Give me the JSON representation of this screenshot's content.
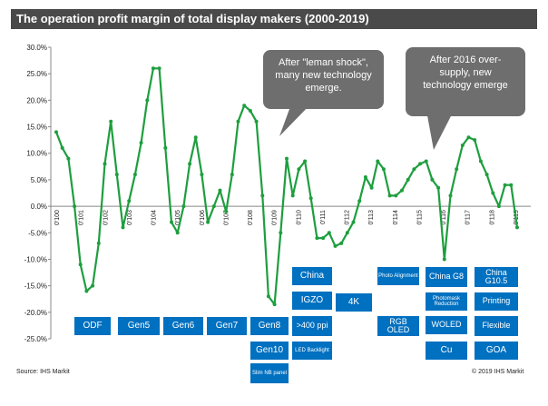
{
  "chart_data": {
    "type": "line",
    "title": "The operation profit margin of total display makers (2000-2019)",
    "y_tick_labels": [
      "30.0%",
      "25.0%",
      "20.0%",
      "15.0%",
      "10.0%",
      "5.0%",
      "0.0%",
      "-5.0%",
      "-10.0%",
      "-15.0%",
      "-20.0%",
      "-25.0%"
    ],
    "ylim": [
      -25,
      30
    ],
    "x_tick_labels": [
      "0'100",
      "0'101",
      "0'102",
      "0'103",
      "0'104",
      "0'105",
      "0'106",
      "0'107",
      "0'108",
      "0'109",
      "0'110",
      "0'111",
      "0'112",
      "0'113",
      "0'114",
      "0'115",
      "0'116",
      "0'117",
      "0'118",
      "0'119"
    ],
    "series": [
      {
        "name": "Operation profit margin",
        "color": "#1e9e3e",
        "values": [
          14,
          11,
          9,
          0,
          -11,
          -16,
          -15,
          -7,
          8,
          16,
          6,
          -4,
          1,
          6,
          12,
          20,
          26,
          26,
          11,
          -3,
          -5,
          0,
          8,
          13,
          6,
          -3,
          0,
          3,
          -1,
          6,
          16,
          19,
          18,
          16,
          2,
          -17,
          -18.5,
          -5,
          9,
          2,
          7,
          8.5,
          1.5,
          -6,
          -6,
          -5,
          -7.5,
          -7,
          -5,
          -3,
          1,
          5.5,
          3.5,
          8.5,
          7,
          2,
          2,
          3,
          5,
          7,
          8,
          8.5,
          5,
          3.5,
          -10,
          2,
          7,
          11.5,
          13,
          12.5,
          8.5,
          6,
          2.5,
          0,
          4,
          4,
          -4
        ]
      }
    ],
    "annotations": [
      {
        "text": "After \"leman shock\", many new technology emerge."
      },
      {
        "text": "After 2016 over-supply, new technology emerge"
      }
    ],
    "technology_labels": [
      {
        "id": "odf",
        "text": "ODF"
      },
      {
        "id": "gen5",
        "text": "Gen5"
      },
      {
        "id": "gen6",
        "text": "Gen6"
      },
      {
        "id": "gen7",
        "text": "Gen7"
      },
      {
        "id": "gen8",
        "text": "Gen8"
      },
      {
        "id": "gen10",
        "text": "Gen10"
      },
      {
        "id": "slimnb",
        "text": "Slim NB panel"
      },
      {
        "id": "china",
        "text": "China"
      },
      {
        "id": "igzo",
        "text": "IGZO"
      },
      {
        "id": "ppi400",
        "text": ">400 ppi"
      },
      {
        "id": "ledbacklight",
        "text": "LED Backlight"
      },
      {
        "id": "4k",
        "text": "4K"
      },
      {
        "id": "photoalign",
        "text": "Photo Alignment"
      },
      {
        "id": "rgboled",
        "text": "RGB OLED"
      },
      {
        "id": "chinag8",
        "text": "China G8"
      },
      {
        "id": "photomask",
        "text": "Photomask Reduction"
      },
      {
        "id": "woled",
        "text": "WOLED"
      },
      {
        "id": "cu",
        "text": "Cu"
      },
      {
        "id": "chinag105",
        "text": "China G10.5"
      },
      {
        "id": "printing",
        "text": "Printing"
      },
      {
        "id": "flexible",
        "text": "Flexible"
      },
      {
        "id": "goa",
        "text": "GOA"
      }
    ],
    "source": "Source: IHS Markit",
    "copyright": "© 2019 IHS Markit"
  }
}
